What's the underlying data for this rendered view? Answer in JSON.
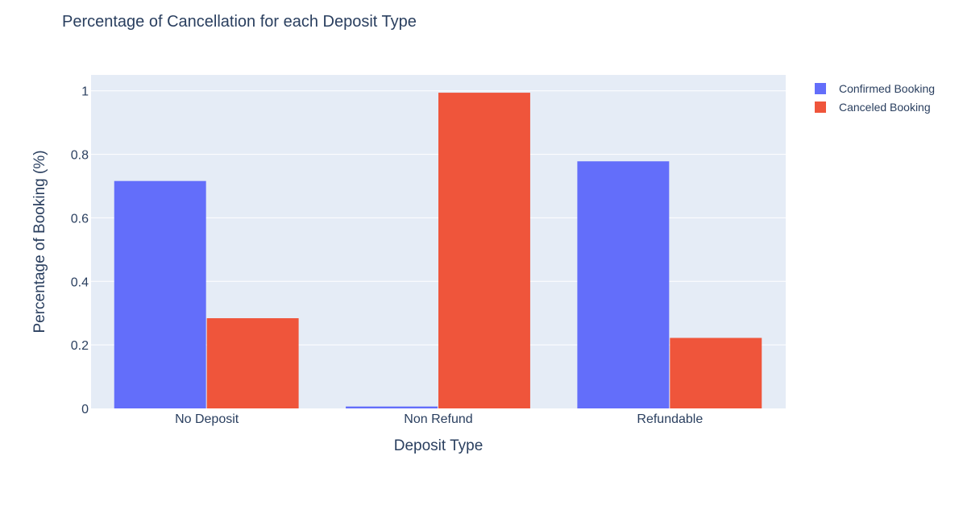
{
  "chart_data": {
    "type": "bar",
    "title": "Percentage of Cancellation for each Deposit Type",
    "xlabel": "Deposit Type",
    "ylabel": "Percentage of Booking (%)",
    "categories": [
      "No Deposit",
      "Non Refund",
      "Refundable"
    ],
    "series": [
      {
        "name": "Confirmed Booking",
        "values": [
          0.716,
          0.006,
          0.778
        ],
        "color": "#636efa"
      },
      {
        "name": "Canceled Booking",
        "values": [
          0.284,
          0.994,
          0.222
        ],
        "color": "#ef553b"
      }
    ],
    "ylim": [
      0,
      1.05
    ],
    "yticks": [
      0,
      0.2,
      0.4,
      0.6,
      0.8,
      1
    ],
    "ytick_labels": [
      "0",
      "0.2",
      "0.4",
      "0.6",
      "0.8",
      "1"
    ],
    "grid": true,
    "legend_position": "top-right",
    "plot_background": "#e5ecf6"
  }
}
